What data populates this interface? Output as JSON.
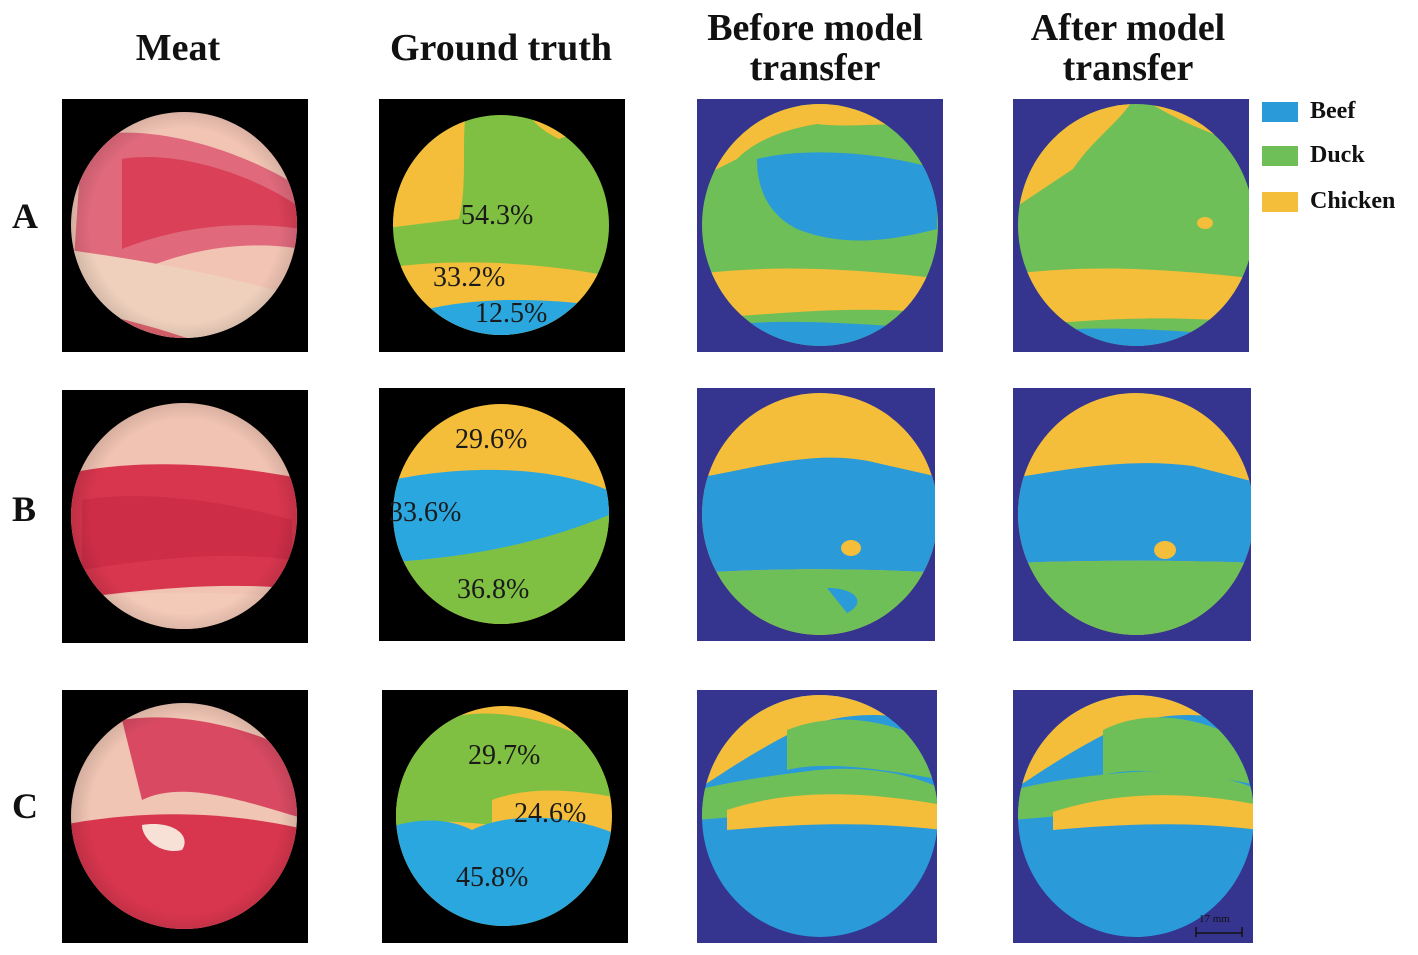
{
  "columns": {
    "meat": "Meat",
    "ground_truth": "Ground truth",
    "before_line1": "Before model",
    "before_line2": "transfer",
    "after_line1": "After model",
    "after_line2": "transfer"
  },
  "rows": {
    "a": "A",
    "b": "B",
    "c": "C"
  },
  "legend": {
    "items": [
      {
        "label": "Beef",
        "color": "#2a9ad9"
      },
      {
        "label": "Duck",
        "color": "#6fbf58"
      },
      {
        "label": "Chicken",
        "color": "#f4bd3a"
      }
    ]
  },
  "ground_truth": {
    "a": {
      "duck": "54.3%",
      "chicken": "33.2%",
      "beef": "12.5%"
    },
    "b": {
      "chicken": "29.6%",
      "beef": "33.6%",
      "duck": "36.8%"
    },
    "c": {
      "duck": "29.7%",
      "chicken": "24.6%",
      "beef": "45.8%"
    }
  },
  "scale_bar": "17 mm",
  "colors": {
    "beef": "#2a9ad9",
    "duck": "#6fbf58",
    "chicken": "#f4bd3a",
    "background_map": "#35348f",
    "meat_red": "#d8364e",
    "meat_pale": "#f2c9b6"
  }
}
